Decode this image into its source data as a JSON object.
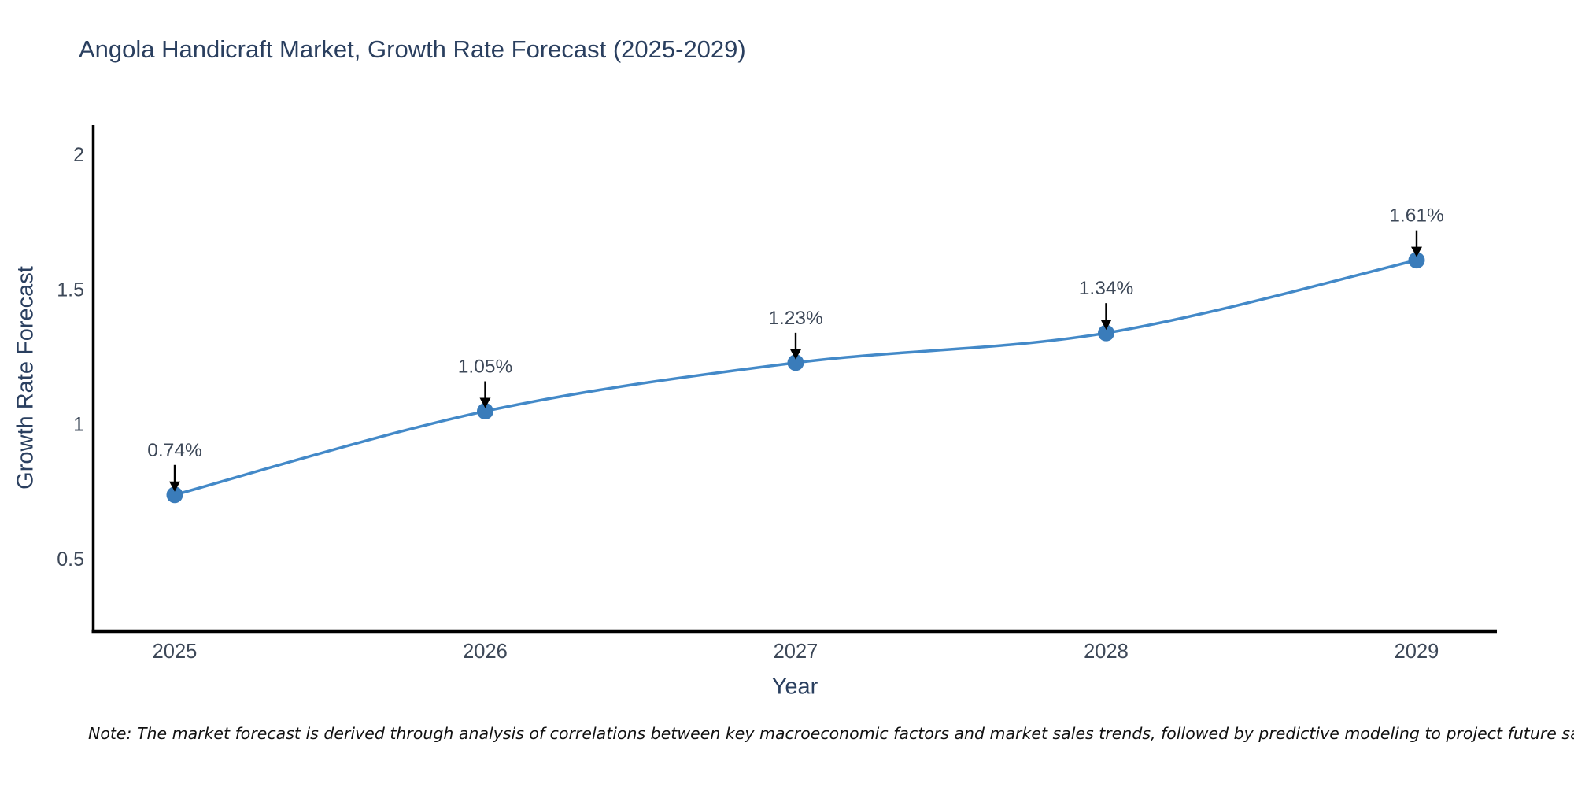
{
  "chart_data": {
    "type": "line",
    "title": "Angola Handicraft Market, Growth Rate Forecast (2025-2029)",
    "xlabel": "Year",
    "ylabel": "Growth Rate Forecast",
    "categories": [
      "2025",
      "2026",
      "2027",
      "2028",
      "2029"
    ],
    "series": [
      {
        "name": "Growth Rate Forecast",
        "values": [
          0.74,
          1.05,
          1.23,
          1.34,
          1.61
        ]
      }
    ],
    "point_labels": [
      "0.74%",
      "1.05%",
      "1.23%",
      "1.34%",
      "1.61%"
    ],
    "yticks": [
      "0.5",
      "1",
      "1.5",
      "2"
    ],
    "ytick_values": [
      0.5,
      1,
      1.5,
      2
    ],
    "ylim": [
      0.24,
      2.11
    ],
    "grid": false,
    "legend_position": "none",
    "line_color": "#4389c8",
    "marker_color": "#3a7cba",
    "annotation_arrow_color": "#000000",
    "axis_color": "#000000",
    "title_color": "#2a3f5f",
    "tick_color": "#3d4858",
    "note": "Note: The market forecast is derived through analysis of correlations between key macroeconomic factors and market sales trends, followed by predictive modeling to project future sales"
  }
}
